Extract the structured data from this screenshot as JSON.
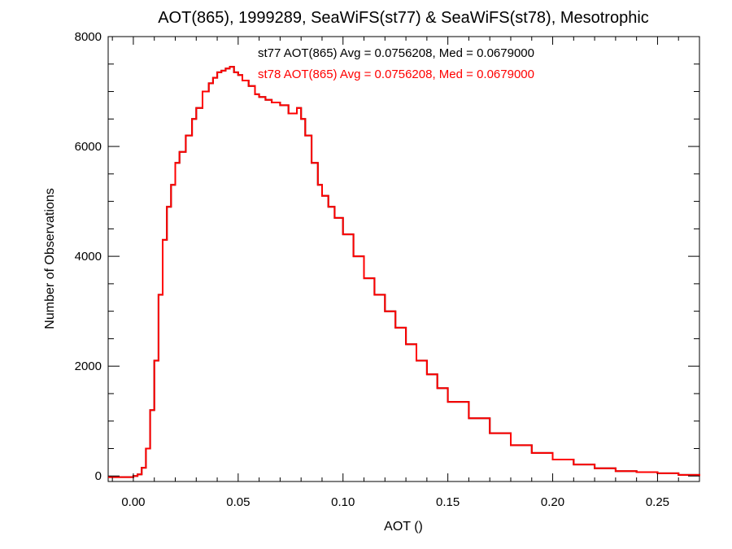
{
  "chart_data": {
    "type": "line",
    "title": "AOT(865), 1999289, SeaWiFS(st77) & SeaWiFS(st78), Mesotrophic",
    "xlabel": "AOT ()",
    "ylabel": "Number of Observations",
    "xlim": [
      -0.012,
      0.27
    ],
    "ylim": [
      -100,
      8000
    ],
    "xticks": [
      0.0,
      0.05,
      0.1,
      0.15,
      0.2,
      0.25
    ],
    "xtick_labels": [
      "0.00",
      "0.05",
      "0.10",
      "0.15",
      "0.20",
      "0.25"
    ],
    "yticks": [
      0,
      2000,
      4000,
      6000,
      8000
    ],
    "ytick_labels": [
      "0",
      "2000",
      "4000",
      "6000",
      "8000"
    ],
    "grid": false,
    "annotations": [
      {
        "text": "st77 AOT(865) Avg = 0.0756208, Med = 0.0679000",
        "color": "#000000"
      },
      {
        "text": "st78 AOT(865) Avg = 0.0756208, Med = 0.0679000",
        "color": "#ff0000"
      }
    ],
    "series": [
      {
        "color": "#000000",
        "x": [
          -0.012,
          0.0,
          0.002,
          0.004,
          0.006,
          0.008,
          0.01,
          0.012,
          0.014,
          0.016,
          0.018,
          0.02,
          0.022,
          0.025,
          0.028,
          0.03,
          0.033,
          0.036,
          0.038,
          0.04,
          0.042,
          0.044,
          0.046,
          0.048,
          0.05,
          0.052,
          0.055,
          0.058,
          0.06,
          0.063,
          0.066,
          0.07,
          0.074,
          0.078,
          0.08,
          0.082,
          0.085,
          0.088,
          0.09,
          0.093,
          0.096,
          0.1,
          0.105,
          0.11,
          0.115,
          0.12,
          0.125,
          0.13,
          0.135,
          0.14,
          0.145,
          0.15,
          0.16,
          0.17,
          0.18,
          0.19,
          0.2,
          0.21,
          0.22,
          0.23,
          0.24,
          0.25,
          0.26,
          0.27
        ],
        "y": [
          -20,
          0,
          30,
          150,
          500,
          1200,
          2100,
          3300,
          4300,
          4900,
          5300,
          5700,
          5900,
          6200,
          6500,
          6700,
          7000,
          7150,
          7250,
          7350,
          7380,
          7420,
          7450,
          7350,
          7300,
          7200,
          7100,
          6950,
          6900,
          6850,
          6800,
          6750,
          6600,
          6700,
          6500,
          6200,
          5700,
          5300,
          5100,
          4900,
          4700,
          4400,
          4000,
          3600,
          3300,
          3000,
          2700,
          2400,
          2100,
          1850,
          1600,
          1350,
          1050,
          780,
          560,
          420,
          300,
          210,
          140,
          90,
          70,
          50,
          20,
          0
        ]
      },
      {
        "color": "#ff0000",
        "x": [
          -0.012,
          0.0,
          0.002,
          0.004,
          0.006,
          0.008,
          0.01,
          0.012,
          0.014,
          0.016,
          0.018,
          0.02,
          0.022,
          0.025,
          0.028,
          0.03,
          0.033,
          0.036,
          0.038,
          0.04,
          0.042,
          0.044,
          0.046,
          0.048,
          0.05,
          0.052,
          0.055,
          0.058,
          0.06,
          0.063,
          0.066,
          0.07,
          0.074,
          0.078,
          0.08,
          0.082,
          0.085,
          0.088,
          0.09,
          0.093,
          0.096,
          0.1,
          0.105,
          0.11,
          0.115,
          0.12,
          0.125,
          0.13,
          0.135,
          0.14,
          0.145,
          0.15,
          0.16,
          0.17,
          0.18,
          0.19,
          0.2,
          0.21,
          0.22,
          0.23,
          0.24,
          0.25,
          0.26,
          0.27
        ],
        "y": [
          -20,
          0,
          30,
          150,
          500,
          1200,
          2100,
          3300,
          4300,
          4900,
          5300,
          5700,
          5900,
          6200,
          6500,
          6700,
          7000,
          7150,
          7250,
          7350,
          7380,
          7420,
          7450,
          7350,
          7300,
          7200,
          7100,
          6950,
          6900,
          6850,
          6800,
          6750,
          6600,
          6700,
          6500,
          6200,
          5700,
          5300,
          5100,
          4900,
          4700,
          4400,
          4000,
          3600,
          3300,
          3000,
          2700,
          2400,
          2100,
          1850,
          1600,
          1350,
          1050,
          780,
          560,
          420,
          300,
          210,
          140,
          90,
          70,
          50,
          20,
          0
        ]
      }
    ]
  }
}
